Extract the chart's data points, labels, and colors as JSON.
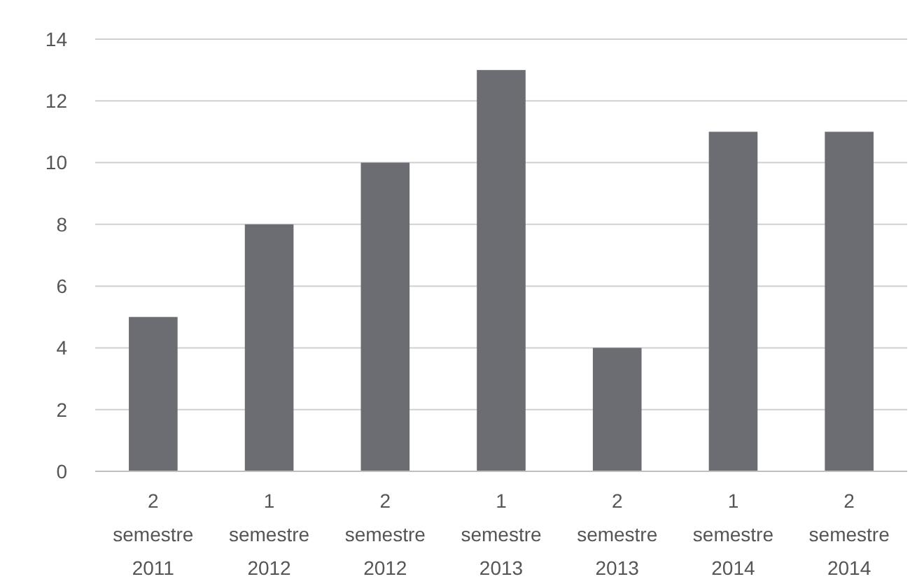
{
  "chart_data": {
    "type": "bar",
    "categories": [
      "2 semestre 2011",
      "1 semestre 2012",
      "2 semestre 2012",
      "1 semestre 2013",
      "2 semestre 2013",
      "1 semestre 2014",
      "2 semestre 2014"
    ],
    "values": [
      5,
      8,
      10,
      13,
      4,
      11,
      11
    ],
    "color": "#6b6d72",
    "ylim": [
      0,
      14
    ],
    "yticks": [
      0,
      2,
      4,
      6,
      8,
      10,
      12,
      14
    ],
    "grid": "y"
  }
}
